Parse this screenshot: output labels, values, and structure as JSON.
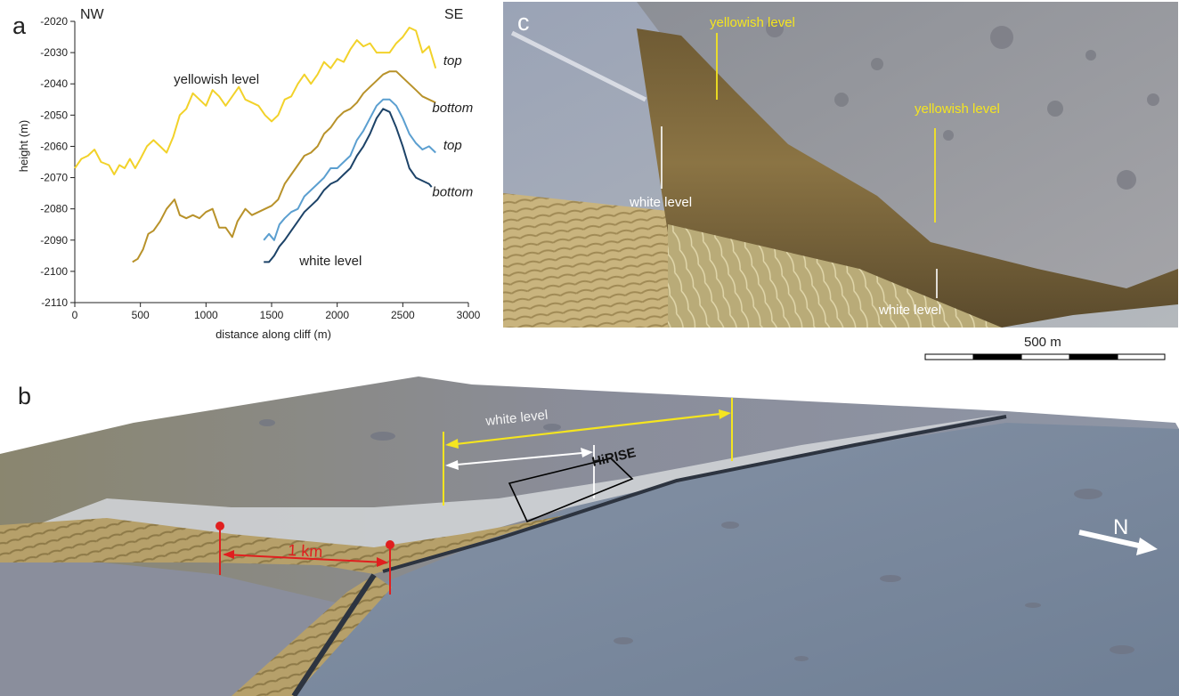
{
  "panels": {
    "a": {
      "label": "a",
      "compass_left": "NW",
      "compass_right": "SE"
    },
    "b": {
      "label": "b",
      "white_level": "white level",
      "hirise": "HiRISE",
      "scale_text": "1 km",
      "north": "N"
    },
    "c": {
      "label": "c",
      "yellowish_1": "yellowish level",
      "yellowish_2": "yellowish level",
      "white_1": "white level",
      "white_2": "white level",
      "scale_text": "500 m"
    }
  },
  "colors": {
    "yellowish_top": "#f2d22a",
    "yellowish_bottom": "#b8922a",
    "white_top": "#5b9fd0",
    "white_bottom": "#1d4368",
    "annotation_yellow": "#f5e51f",
    "annotation_red": "#e01f1f"
  },
  "chart_data": {
    "type": "line",
    "xlabel": "distance along cliff (m)",
    "ylabel": "height (m)",
    "xlim": [
      0,
      3000
    ],
    "ylim": [
      -2110,
      -2020
    ],
    "xticks": [
      0,
      500,
      1000,
      1500,
      2000,
      2500,
      3000
    ],
    "yticks": [
      -2020,
      -2030,
      -2040,
      -2050,
      -2060,
      -2070,
      -2080,
      -2090,
      -2100,
      -2110
    ],
    "annotations": [
      {
        "text": "yellowish level",
        "x": 1080,
        "y": -2040
      },
      {
        "text": "white level",
        "x": 1950,
        "y": -2098
      },
      {
        "text": "top",
        "x": 2880,
        "y": -2034
      },
      {
        "text": "bottom",
        "x": 2880,
        "y": -2049
      },
      {
        "text": "top",
        "x": 2880,
        "y": -2061
      },
      {
        "text": "bottom",
        "x": 2880,
        "y": -2076
      }
    ],
    "series": [
      {
        "name": "",
        "color": "#f2d22a",
        "x": [
          0,
          50,
          100,
          150,
          200,
          260,
          300,
          340,
          380,
          420,
          460,
          500,
          550,
          600,
          650,
          700,
          750,
          800,
          850,
          900,
          950,
          1000,
          1050,
          1100,
          1150,
          1200,
          1250,
          1300,
          1350,
          1400,
          1450,
          1500,
          1550,
          1600,
          1650,
          1700,
          1750,
          1800,
          1850,
          1900,
          1950,
          2000,
          2050,
          2100,
          2150,
          2200,
          2250,
          2300,
          2350,
          2400,
          2450,
          2500,
          2550,
          2600,
          2650,
          2700,
          2750
        ],
        "y": [
          -2067,
          -2064,
          -2063,
          -2061,
          -2065,
          -2066,
          -2069,
          -2066,
          -2067,
          -2064,
          -2067,
          -2064,
          -2060,
          -2058,
          -2060,
          -2062,
          -2057,
          -2050,
          -2048,
          -2043,
          -2045,
          -2047,
          -2042,
          -2044,
          -2047,
          -2044,
          -2041,
          -2045,
          -2046,
          -2047,
          -2050,
          -2052,
          -2050,
          -2045,
          -2044,
          -2040,
          -2037,
          -2040,
          -2037,
          -2033,
          -2035,
          -2032,
          -2033,
          -2029,
          -2026,
          -2028,
          -2027,
          -2030,
          -2030,
          -2030,
          -2027,
          -2025,
          -2022,
          -2023,
          -2030,
          -2028,
          -2035
        ]
      },
      {
        "name": "",
        "color": "#b8922a",
        "x": [
          440,
          480,
          520,
          560,
          600,
          650,
          700,
          760,
          800,
          850,
          900,
          950,
          1000,
          1050,
          1100,
          1150,
          1200,
          1240,
          1300,
          1350,
          1400,
          1450,
          1500,
          1550,
          1600,
          1650,
          1700,
          1750,
          1800,
          1850,
          1900,
          1950,
          2000,
          2050,
          2100,
          2150,
          2200,
          2250,
          2300,
          2350,
          2400,
          2450,
          2500,
          2550,
          2600,
          2650,
          2700,
          2750
        ],
        "y": [
          -2097,
          -2096,
          -2093,
          -2088,
          -2087,
          -2084,
          -2080,
          -2077,
          -2082,
          -2083,
          -2082,
          -2083,
          -2081,
          -2080,
          -2086,
          -2086,
          -2089,
          -2084,
          -2080,
          -2082,
          -2081,
          -2080,
          -2079,
          -2077,
          -2072,
          -2069,
          -2066,
          -2063,
          -2062,
          -2060,
          -2056,
          -2054,
          -2051,
          -2049,
          -2048,
          -2046,
          -2043,
          -2041,
          -2039,
          -2037,
          -2036,
          -2036,
          -2038,
          -2040,
          -2042,
          -2044,
          -2045,
          -2046
        ]
      },
      {
        "name": "",
        "color": "#5b9fd0",
        "x": [
          1440,
          1480,
          1520,
          1560,
          1600,
          1650,
          1700,
          1750,
          1800,
          1850,
          1900,
          1950,
          2000,
          2050,
          2100,
          2150,
          2200,
          2250,
          2300,
          2350,
          2400,
          2450,
          2500,
          2550,
          2600,
          2650,
          2700,
          2750
        ],
        "y": [
          -2090,
          -2088,
          -2090,
          -2085,
          -2083,
          -2081,
          -2080,
          -2076,
          -2074,
          -2072,
          -2070,
          -2067,
          -2067,
          -2065,
          -2063,
          -2058,
          -2055,
          -2051,
          -2047,
          -2045,
          -2045,
          -2047,
          -2051,
          -2056,
          -2059,
          -2061,
          -2060,
          -2062
        ]
      },
      {
        "name": "",
        "color": "#1d4368",
        "x": [
          1440,
          1480,
          1520,
          1560,
          1600,
          1650,
          1700,
          1750,
          1800,
          1850,
          1900,
          1950,
          2000,
          2050,
          2100,
          2150,
          2200,
          2250,
          2300,
          2350,
          2400,
          2450,
          2500,
          2550,
          2600,
          2650,
          2700,
          2720
        ],
        "y": [
          -2097,
          -2097,
          -2095,
          -2092,
          -2090,
          -2087,
          -2084,
          -2081,
          -2079,
          -2077,
          -2074,
          -2072,
          -2071,
          -2069,
          -2067,
          -2063,
          -2060,
          -2056,
          -2051,
          -2048,
          -2049,
          -2054,
          -2060,
          -2067,
          -2070,
          -2071,
          -2072,
          -2073
        ]
      }
    ]
  }
}
